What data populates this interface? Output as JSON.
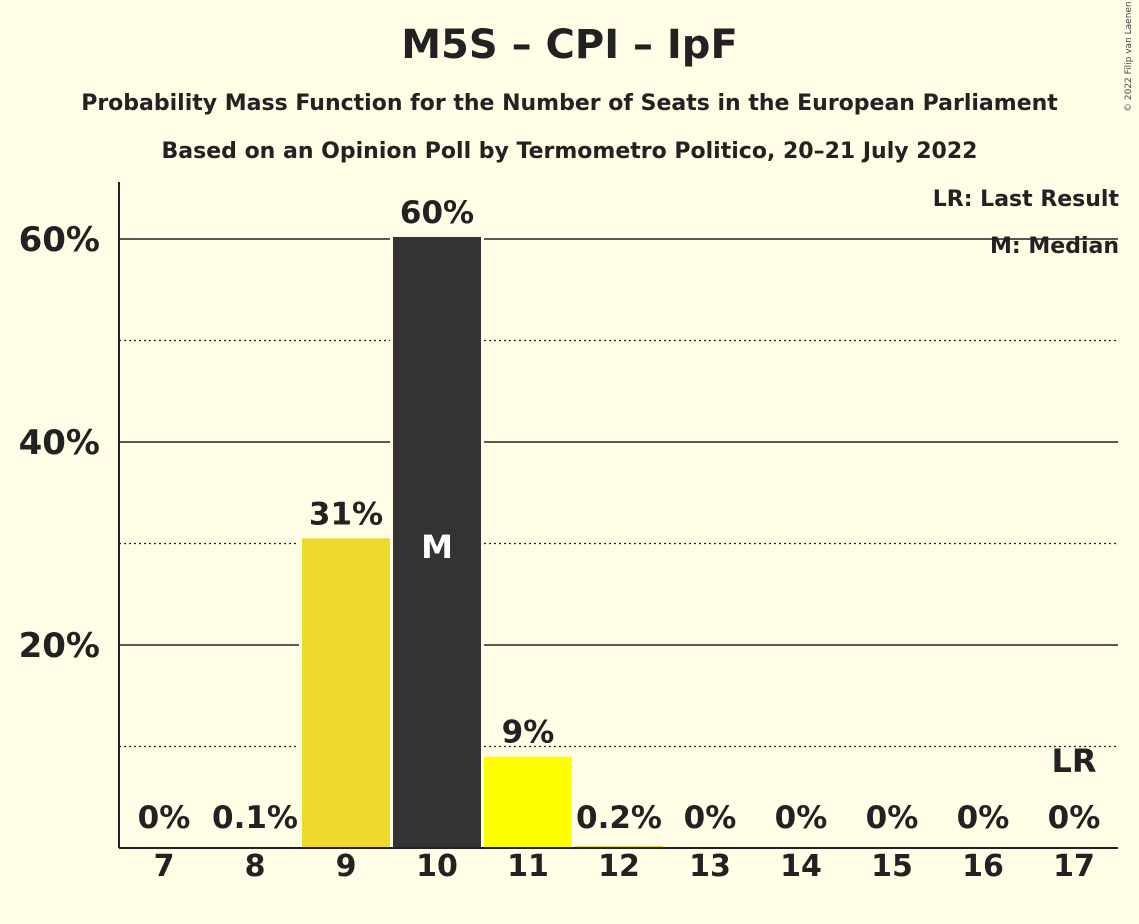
{
  "title": "M5S – CPI – IpF",
  "subtitle": "Probability Mass Function for the Number of Seats in the European Parliament",
  "subtitle2": "Based on an Opinion Poll by Termometro Politico, 20–21 July 2022",
  "copyright": "© 2022 Filip van Laenen",
  "legend": {
    "last_result": "LR: Last Result",
    "median": "M: Median"
  },
  "chart_data": {
    "type": "bar",
    "title": "M5S – CPI – IpF",
    "categories": [
      "7",
      "8",
      "9",
      "10",
      "11",
      "12",
      "13",
      "14",
      "15",
      "16",
      "17"
    ],
    "values": [
      0,
      0.1,
      31,
      60,
      9,
      0.2,
      0,
      0,
      0,
      0,
      0
    ],
    "value_labels": [
      "0%",
      "0.1%",
      "31%",
      "60%",
      "9%",
      "0.2%",
      "0%",
      "0%",
      "0%",
      "0%",
      "0%"
    ],
    "exact_values": [
      0,
      0.1,
      30.5,
      60.2,
      9.0,
      0.2,
      0,
      0,
      0,
      0,
      0
    ],
    "y_ticks": [
      20,
      40,
      60
    ],
    "y_tick_labels": [
      "20%",
      "40%",
      "60%"
    ],
    "minor_gridlines": [
      10,
      30,
      50
    ],
    "ylim": [
      0,
      66
    ],
    "median_seats": "10",
    "median_label": "M",
    "last_result_seats": "17",
    "last_result_label": "LR",
    "colors": {
      "background": "#fffde6",
      "bar_default": "#ecd92a",
      "bar_median": "#333333",
      "bar_highlight": "#ffff00",
      "text": "#222222"
    }
  }
}
